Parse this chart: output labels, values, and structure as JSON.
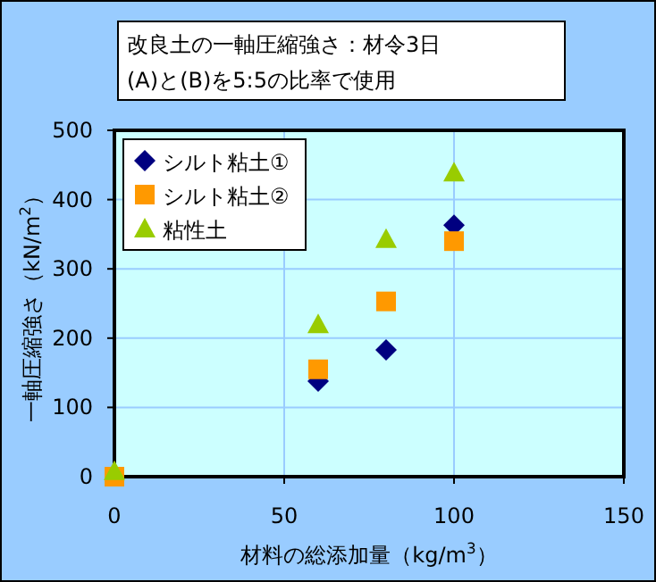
{
  "chart_data": {
    "type": "scatter",
    "title": "改良土の一軸圧縮強さ：材令3日",
    "subtitle": "(A)と(B)を5:5の比率で使用",
    "xlabel": "材料の総添加量（kg/m$^{3}$）",
    "ylabel": "一軸圧縮強さ（kN/m$^{2}$）",
    "x": [
      0,
      60,
      80,
      100
    ],
    "series": [
      {
        "name": "シルト粘土①",
        "color": "#000080",
        "marker": "diamond",
        "values": [
          null,
          138,
          183,
          363
        ]
      },
      {
        "name": "シルト粘土②",
        "color": "#ff9900",
        "marker": "square",
        "values": [
          0,
          155,
          253,
          340
        ]
      },
      {
        "name": "粘性土",
        "color": "#99cc00",
        "marker": "triangle",
        "values": [
          8,
          220,
          343,
          439
        ]
      }
    ],
    "xlim": [
      0,
      150
    ],
    "ylim": [
      0,
      500
    ],
    "xticks": [
      0,
      50,
      100,
      150
    ],
    "yticks": [
      0,
      100,
      200,
      300,
      400,
      500
    ],
    "grid": true,
    "legend": "top left"
  }
}
